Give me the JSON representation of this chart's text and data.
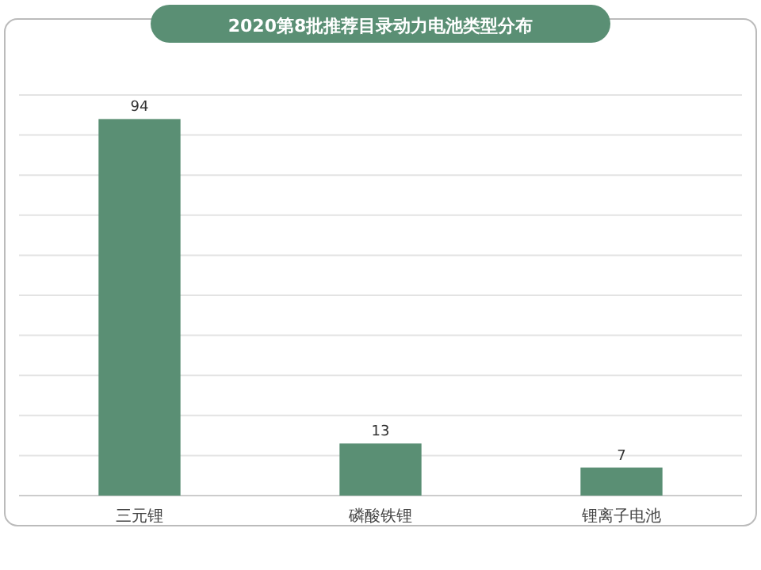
{
  "chart_data": {
    "type": "bar",
    "title": "2020第8批推荐目录动力电池类型分布",
    "categories": [
      "三元锂",
      "磷酸铁锂",
      "锂离子电池"
    ],
    "values": [
      94,
      13,
      7
    ],
    "color": "#5a8f74",
    "data_labels": true,
    "ylim": [
      0,
      100
    ],
    "yticks": [
      {
        "value": 0,
        "label": null
      },
      {
        "value": 10,
        "label": null
      },
      {
        "value": 20,
        "label": null
      },
      {
        "value": 30,
        "label": null
      },
      {
        "value": 40,
        "label": null
      },
      {
        "value": 50,
        "label": null
      },
      {
        "value": 60,
        "label": null
      },
      {
        "value": 70,
        "label": null
      },
      {
        "value": 80,
        "label": null
      },
      {
        "value": 90,
        "label": null
      },
      {
        "value": 100,
        "label": null
      }
    ],
    "grid": "y",
    "tick_labels": "x"
  }
}
